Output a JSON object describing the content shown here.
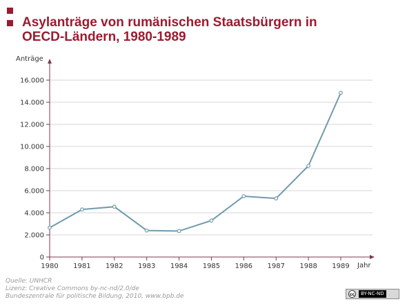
{
  "header": {
    "title": "Asylanträge von rumänischen Staatsbürgern in OECD-Ländern, 1980-1989",
    "accent_color": "#9b1b30"
  },
  "chart_data": {
    "type": "line",
    "title": "Asylanträge von rumänischen Staatsbürgern in OECD-Ländern, 1980-1989",
    "xlabel": "Jahr",
    "ylabel": "Anträge",
    "categories": [
      "1980",
      "1981",
      "1982",
      "1983",
      "1984",
      "1985",
      "1986",
      "1987",
      "1988",
      "1989"
    ],
    "series": [
      {
        "values": [
          2650,
          4300,
          4550,
          2400,
          2350,
          3300,
          5500,
          5300,
          8250,
          14850
        ],
        "color": "#6f9aab"
      }
    ],
    "ylim": [
      0,
      16000
    ],
    "y_ticks": [
      "0",
      "2.000",
      "4.000",
      "6.000",
      "8.000",
      "10.000",
      "12.000",
      "14.000",
      "16.000"
    ],
    "y_tick_values": [
      0,
      2000,
      4000,
      6000,
      8000,
      10000,
      12000,
      14000,
      16000
    ],
    "grid": true,
    "legend": "none",
    "axis_color": "#7a3a4a"
  },
  "footer": {
    "lines": [
      "Quelle: UNHCR",
      "Lizenz: Creative Commons by-nc-nd/2.0/de",
      "Bundeszentrale für politische Bildung, 2010, www.bpb.de"
    ],
    "license_badge": {
      "symbol": "cc",
      "text": "BY-NC-ND"
    }
  }
}
